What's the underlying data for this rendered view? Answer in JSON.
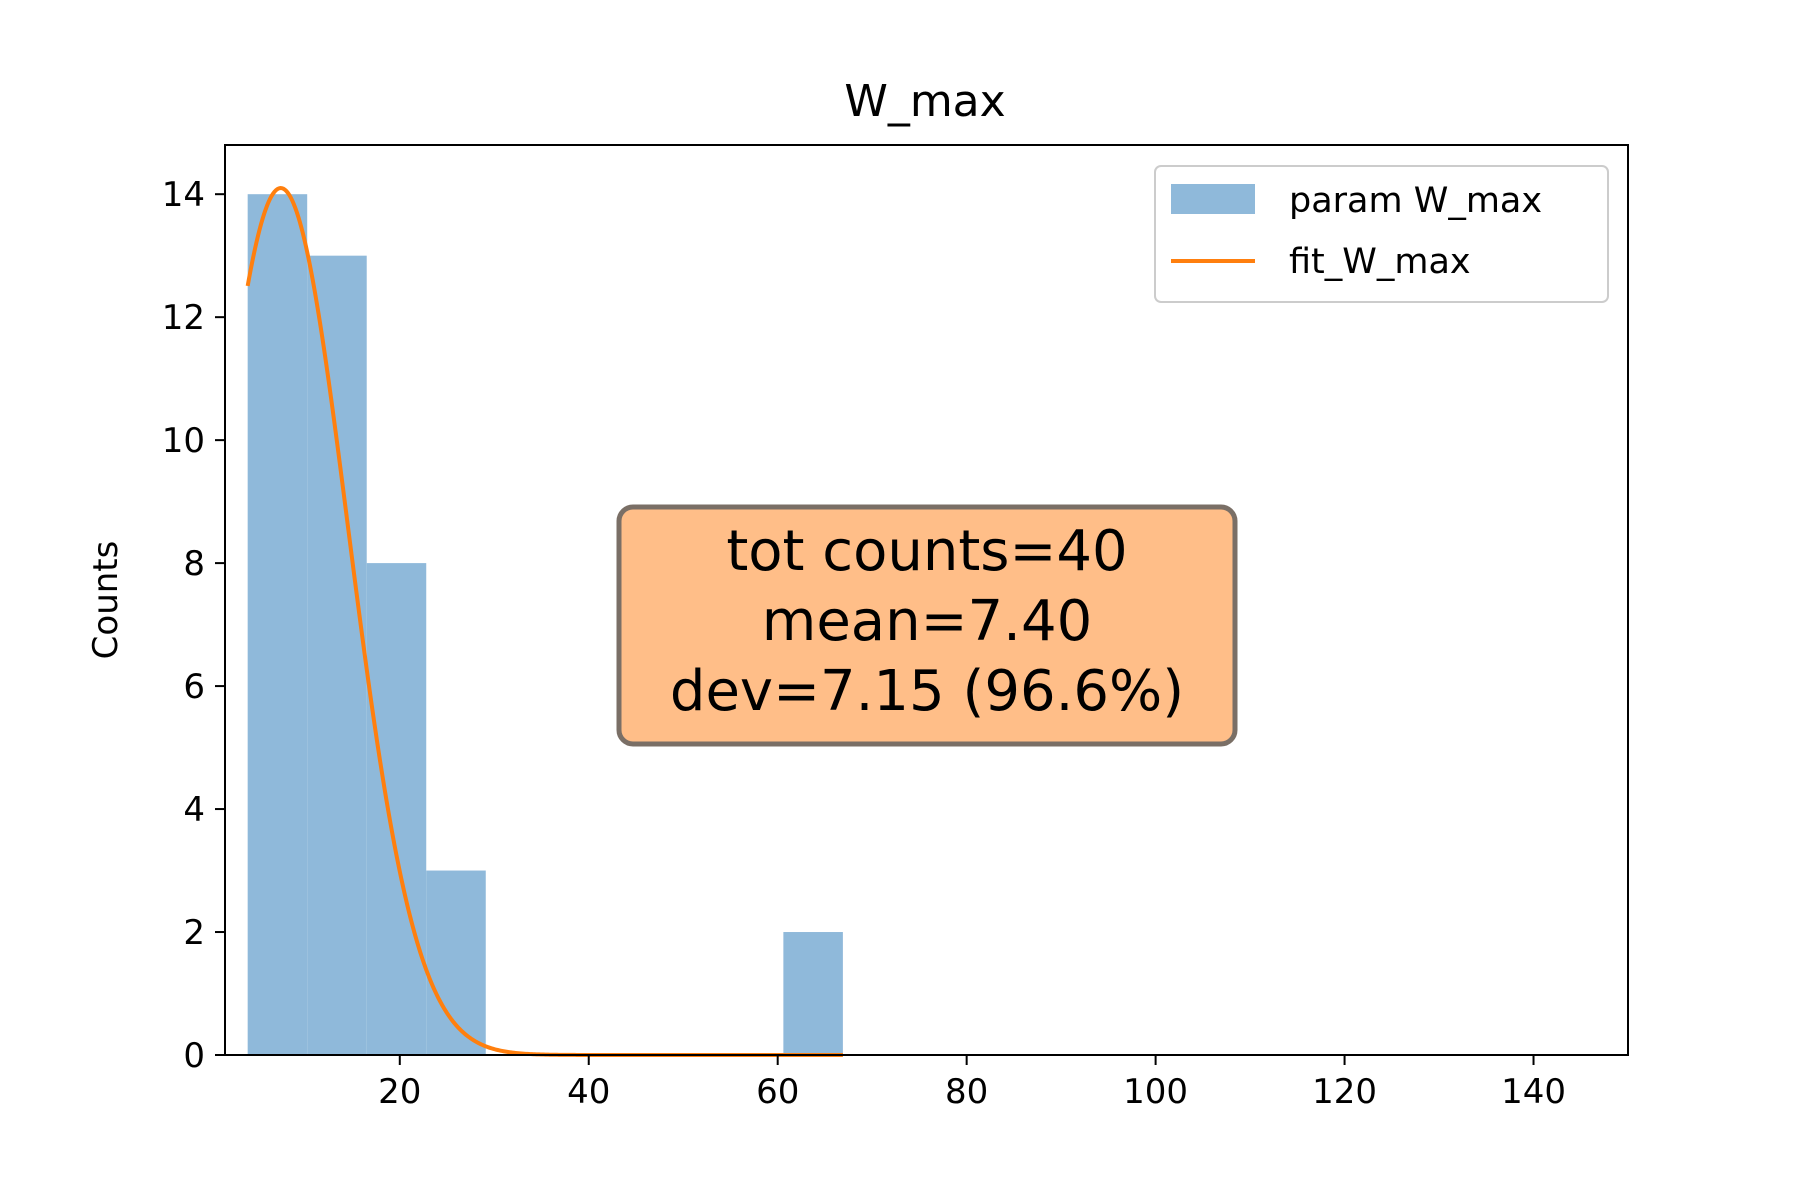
{
  "chart_data": {
    "type": "bar",
    "title": "W_max",
    "xlabel": "",
    "ylabel": "Counts",
    "xlim": [
      1.5,
      150
    ],
    "ylim": [
      0,
      14.8
    ],
    "xticks": [
      20,
      40,
      60,
      80,
      100,
      120,
      140
    ],
    "yticks": [
      0,
      2,
      4,
      6,
      8,
      10,
      12,
      14
    ],
    "grid": false,
    "legend_position": "upper-right",
    "bins": [
      {
        "start": 3.9,
        "end": 10.2,
        "count": 14
      },
      {
        "start": 10.2,
        "end": 16.5,
        "count": 13
      },
      {
        "start": 16.5,
        "end": 22.8,
        "count": 8
      },
      {
        "start": 22.8,
        "end": 29.1,
        "count": 3
      },
      {
        "start": 29.1,
        "end": 35.4,
        "count": 0
      },
      {
        "start": 35.4,
        "end": 41.7,
        "count": 0
      },
      {
        "start": 41.7,
        "end": 48.0,
        "count": 0
      },
      {
        "start": 48.0,
        "end": 54.3,
        "count": 0
      },
      {
        "start": 54.3,
        "end": 60.6,
        "count": 0
      },
      {
        "start": 60.6,
        "end": 66.9,
        "count": 2
      }
    ],
    "series": [
      {
        "name": "param W_max",
        "kind": "histogram",
        "color": "#8fb9da"
      },
      {
        "name": "fit_W_max",
        "kind": "line",
        "color": "#ff7f0e",
        "fit": {
          "amplitude": 14.1,
          "mean": 7.4,
          "sigma": 7.15,
          "x_range": [
            3.9,
            66.9
          ]
        }
      }
    ],
    "annotation": {
      "lines": [
        "tot counts=40",
        "mean=7.40",
        "dev=7.15 (96.6%)"
      ],
      "box_color": "#ffbe88",
      "edge_color": "#7a6f66"
    }
  }
}
